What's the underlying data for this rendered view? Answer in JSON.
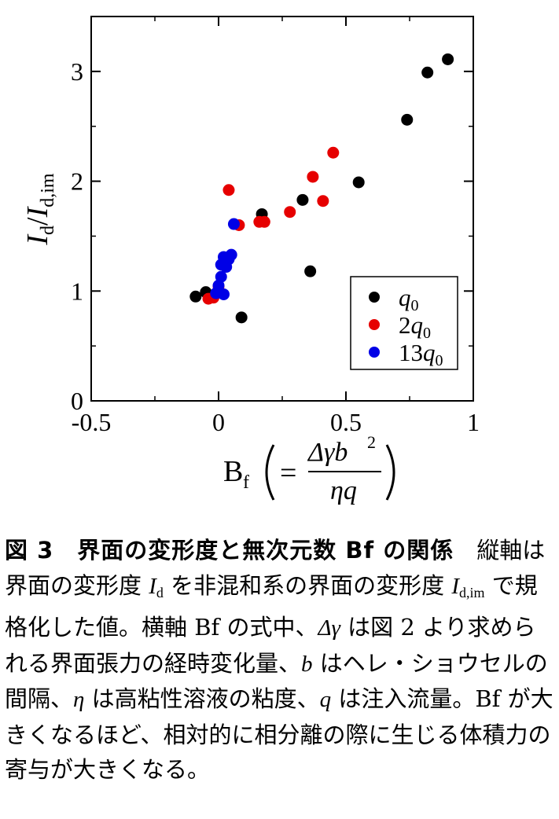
{
  "chart_data": {
    "type": "scatter",
    "xlabel": "Bf",
    "ylabel": "Id/Id,im",
    "xlim": [
      -0.5,
      1
    ],
    "ylim": [
      0,
      3.5
    ],
    "xticks": [
      "-0.5",
      "0",
      "0.5",
      "1"
    ],
    "yticks": [
      "0",
      "1",
      "2",
      "3"
    ],
    "grid": false,
    "legend_position": "bottom-right",
    "series": [
      {
        "name": "q0",
        "color": "#000000",
        "points": [
          [
            -0.09,
            0.95
          ],
          [
            -0.05,
            0.99
          ],
          [
            0.09,
            0.76
          ],
          [
            0.17,
            1.7
          ],
          [
            0.33,
            1.83
          ],
          [
            0.36,
            1.18
          ],
          [
            0.55,
            1.99
          ],
          [
            0.74,
            2.56
          ],
          [
            0.82,
            2.99
          ],
          [
            0.9,
            3.11
          ]
        ]
      },
      {
        "name": "2q0",
        "color": "#e60000",
        "points": [
          [
            -0.04,
            0.93
          ],
          [
            -0.02,
            0.94
          ],
          [
            0.0,
            1.04
          ],
          [
            0.04,
            1.92
          ],
          [
            0.08,
            1.6
          ],
          [
            0.16,
            1.63
          ],
          [
            0.18,
            1.63
          ],
          [
            0.28,
            1.72
          ],
          [
            0.37,
            2.04
          ],
          [
            0.41,
            1.82
          ],
          [
            0.45,
            2.26
          ]
        ]
      },
      {
        "name": "13q0",
        "color": "#0000e6",
        "points": [
          [
            -0.01,
            0.98
          ],
          [
            0.0,
            1.05
          ],
          [
            0.01,
            1.13
          ],
          [
            0.01,
            1.24
          ],
          [
            0.02,
            1.31
          ],
          [
            0.02,
            0.97
          ],
          [
            0.03,
            1.22
          ],
          [
            0.04,
            1.29
          ],
          [
            0.05,
            1.33
          ],
          [
            0.06,
            1.61
          ]
        ]
      }
    ]
  },
  "axes": {
    "x_name": "B",
    "x_sub": "f",
    "x_eq": "=",
    "x_num": "Δγb",
    "x_num_sup": "2",
    "x_den": "ηq",
    "y_I1": "I",
    "y_sub1": "d",
    "y_slash": "/",
    "y_I2": "I",
    "y_sub2": "d,im"
  },
  "legend": {
    "q": "q",
    "sub": "0",
    "prefix_2": "2",
    "prefix_13": "13"
  },
  "caption": {
    "heading": "図 3　界面の変形度と無次元数 Bf の関係",
    "p1": "縦軸は界面の変形度 ",
    "I": "I",
    "d": "d",
    "p2": " を非混和系の界面の変形度 ",
    "dim": "d,im",
    "p3": " で規格化した値。横軸 Bf の式中、",
    "dgamma": "Δγ",
    "p4": " は図 2 より求められる界面張力の経時変化量、",
    "b": "b",
    "p5": " はヘレ・ショウセルの間隔、",
    "eta": "η",
    "p6": " は高粘性溶液の粘度、",
    "q": "q",
    "p7": " は注入流量。Bf が大きくなるほど、相対的に相分離の際に生じる体積力の寄与が大きくなる。"
  }
}
